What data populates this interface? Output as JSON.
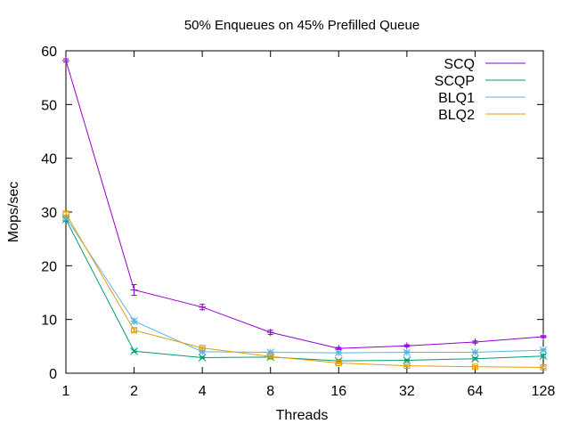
{
  "chart_data": {
    "type": "line",
    "title": "50% Enqueues on 45% Prefilled Queue",
    "xlabel": "Threads",
    "ylabel": "Mops/sec",
    "x_scale": "log2",
    "categories": [
      "1",
      "2",
      "4",
      "8",
      "16",
      "32",
      "64",
      "128"
    ],
    "x": [
      1,
      2,
      4,
      8,
      16,
      32,
      64,
      128
    ],
    "ylim": [
      0,
      60
    ],
    "yticks": [
      "0",
      "10",
      "20",
      "30",
      "40",
      "50",
      "60"
    ],
    "grid": false,
    "legend_position": "top-right",
    "series": [
      {
        "name": "SCQ",
        "color": "#9400d3",
        "marker": "plus",
        "values": [
          58.2,
          15.5,
          12.3,
          7.6,
          4.6,
          5.1,
          5.8,
          6.8
        ],
        "errors": [
          0.3,
          1.0,
          0.5,
          0.4,
          0.2,
          0.2,
          0.2,
          0.2
        ]
      },
      {
        "name": "SCQP",
        "color": "#009e73",
        "marker": "x",
        "values": [
          28.6,
          4.1,
          2.9,
          3.0,
          2.3,
          2.4,
          2.7,
          3.2
        ],
        "errors": [
          0.3,
          0.2,
          0.2,
          0.2,
          0.2,
          0.2,
          0.2,
          0.2
        ]
      },
      {
        "name": "BLQ1",
        "color": "#56b4e9",
        "marker": "star",
        "values": [
          29.0,
          9.7,
          4.0,
          3.9,
          3.8,
          3.9,
          3.9,
          4.3
        ],
        "errors": [
          0.3,
          0.4,
          0.2,
          0.2,
          0.2,
          0.2,
          0.2,
          0.2
        ]
      },
      {
        "name": "BLQ2",
        "color": "#e69f00",
        "marker": "square",
        "values": [
          29.7,
          8.0,
          4.7,
          3.1,
          1.9,
          1.4,
          1.2,
          1.1
        ],
        "errors": [
          0.3,
          0.3,
          0.2,
          0.2,
          0.2,
          0.2,
          0.2,
          0.2
        ]
      }
    ]
  }
}
